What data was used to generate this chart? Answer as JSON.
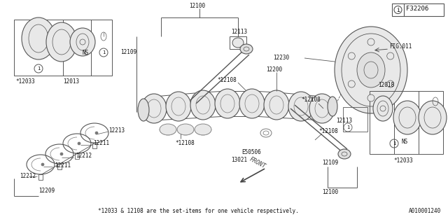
{
  "bg_color": "#ffffff",
  "line_color": "#555555",
  "text_color": "#111111",
  "fig_ref": "F32206",
  "doc_ref": "A010001240",
  "footnote": "*12033 & 12108 are the set-items for one vehicle respectively."
}
